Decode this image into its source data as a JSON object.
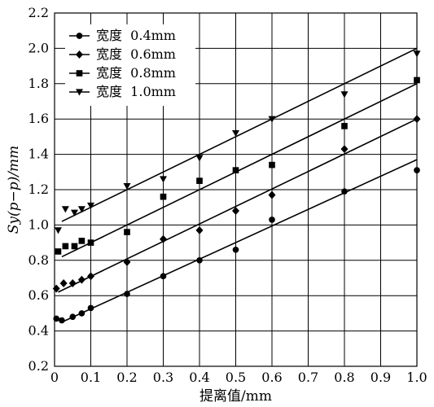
{
  "chart_data": {
    "type": "scatter",
    "xlabel": "提离值/mm",
    "ylabel": "Sy(p−p)/mm",
    "xlim": [
      0,
      1.0
    ],
    "ylim": [
      0.2,
      2.2
    ],
    "xticks": [
      "0",
      "0.1",
      "0.2",
      "0.3",
      "0.4",
      "0.5",
      "0.6",
      "0.7",
      "0.8",
      "0.9",
      "1.0"
    ],
    "yticks": [
      "0.2",
      "0.4",
      "0.6",
      "0.8",
      "1.0",
      "1.2",
      "1.4",
      "1.6",
      "1.8",
      "2.0",
      "2.2"
    ],
    "grid": true,
    "legend_position": "top-left",
    "series": [
      {
        "name": "宽度  0.4mm",
        "marker": "circle",
        "points": [
          [
            0.005,
            0.47
          ],
          [
            0.02,
            0.46
          ],
          [
            0.05,
            0.48
          ],
          [
            0.075,
            0.5
          ],
          [
            0.1,
            0.53
          ],
          [
            0.2,
            0.61
          ],
          [
            0.3,
            0.71
          ],
          [
            0.4,
            0.8
          ],
          [
            0.5,
            0.86
          ],
          [
            0.6,
            1.03
          ],
          [
            0.8,
            1.19
          ],
          [
            1.0,
            1.31
          ]
        ],
        "fit": [
          [
            0.02,
            0.45
          ],
          [
            1.0,
            1.37
          ]
        ]
      },
      {
        "name": "宽度  0.6mm",
        "marker": "diamond",
        "points": [
          [
            0.005,
            0.64
          ],
          [
            0.025,
            0.67
          ],
          [
            0.05,
            0.67
          ],
          [
            0.075,
            0.69
          ],
          [
            0.1,
            0.71
          ],
          [
            0.2,
            0.79
          ],
          [
            0.3,
            0.92
          ],
          [
            0.4,
            0.97
          ],
          [
            0.5,
            1.08
          ],
          [
            0.6,
            1.17
          ],
          [
            0.8,
            1.43
          ],
          [
            1.0,
            1.6
          ]
        ],
        "fit": [
          [
            0.01,
            0.62
          ],
          [
            1.0,
            1.6
          ]
        ]
      },
      {
        "name": "宽度  0.8mm",
        "marker": "square",
        "points": [
          [
            0.01,
            0.85
          ],
          [
            0.03,
            0.88
          ],
          [
            0.055,
            0.88
          ],
          [
            0.075,
            0.91
          ],
          [
            0.1,
            0.9
          ],
          [
            0.2,
            0.96
          ],
          [
            0.3,
            1.16
          ],
          [
            0.4,
            1.25
          ],
          [
            0.5,
            1.31
          ],
          [
            0.6,
            1.34
          ],
          [
            0.8,
            1.56
          ],
          [
            1.0,
            1.82
          ]
        ],
        "fit": [
          [
            0.02,
            0.82
          ],
          [
            1.0,
            1.8
          ]
        ]
      },
      {
        "name": "宽度  1.0mm",
        "marker": "triangle-down",
        "points": [
          [
            0.01,
            0.97
          ],
          [
            0.03,
            1.09
          ],
          [
            0.055,
            1.07
          ],
          [
            0.075,
            1.09
          ],
          [
            0.1,
            1.11
          ],
          [
            0.2,
            1.22
          ],
          [
            0.3,
            1.26
          ],
          [
            0.4,
            1.38
          ],
          [
            0.5,
            1.52
          ],
          [
            0.6,
            1.6
          ],
          [
            0.8,
            1.74
          ],
          [
            1.0,
            1.97
          ]
        ],
        "fit": [
          [
            0.02,
            1.02
          ],
          [
            1.0,
            2.0
          ]
        ]
      }
    ]
  }
}
